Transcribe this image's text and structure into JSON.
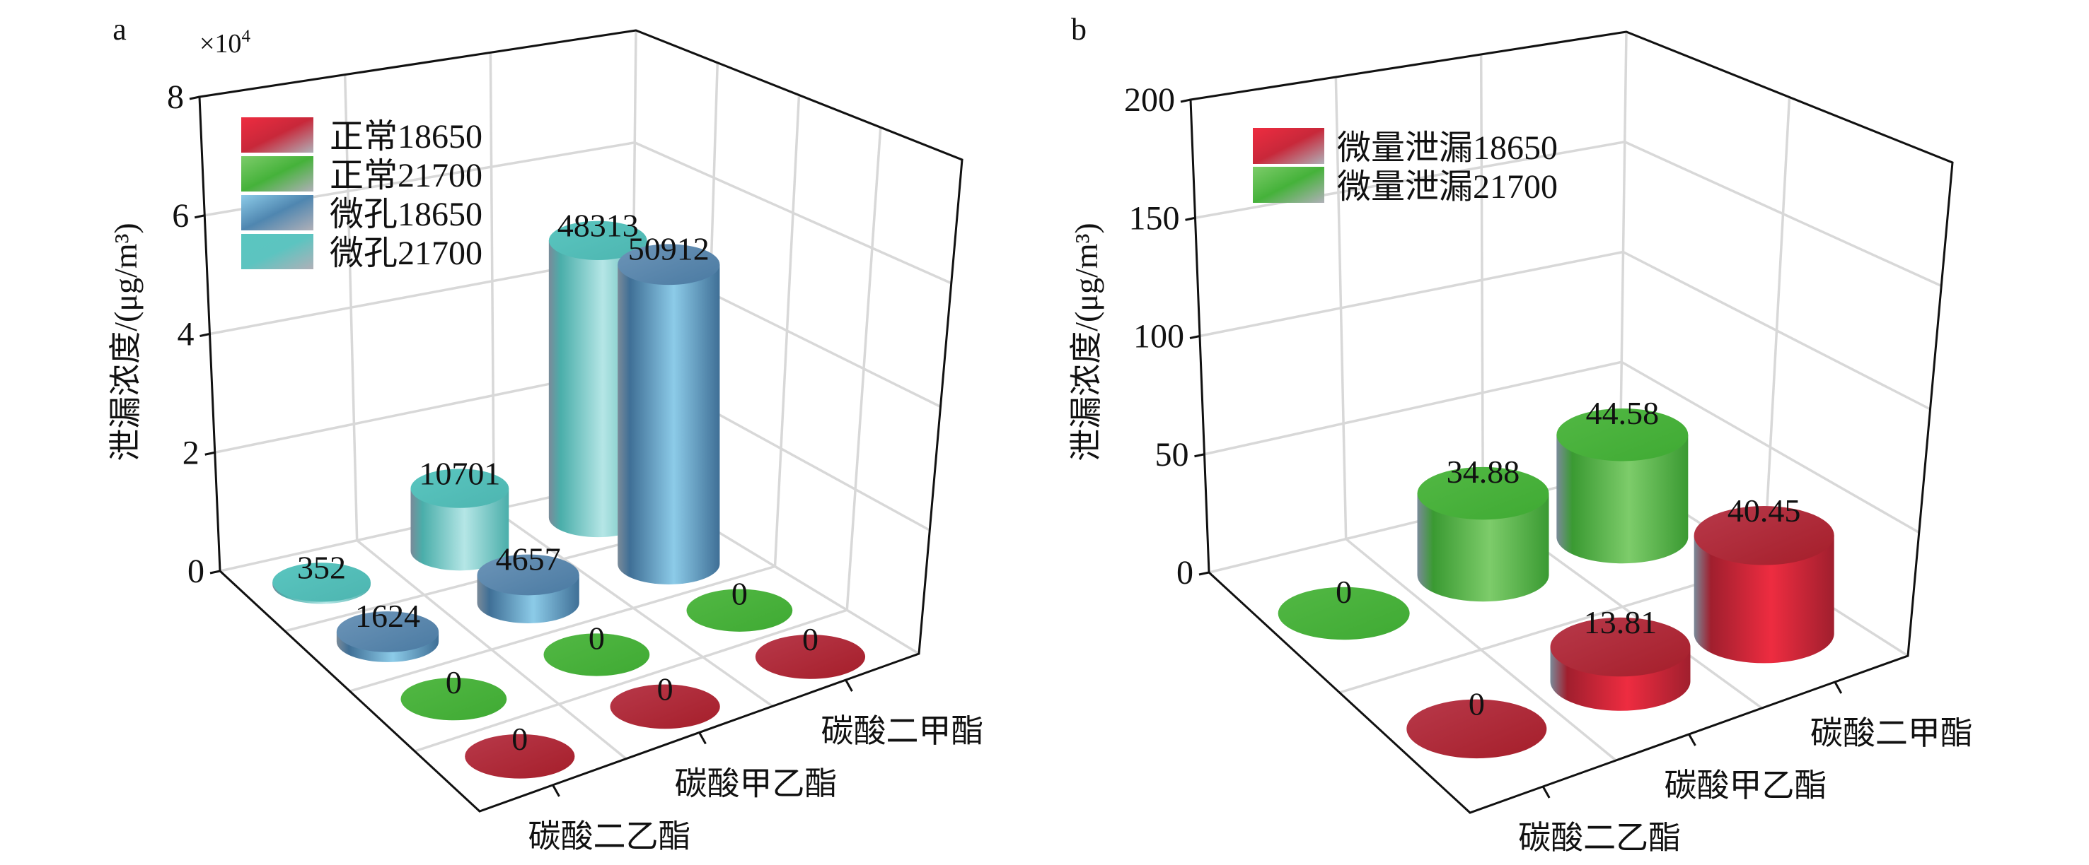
{
  "chart_data": [
    {
      "panel_label": "a",
      "type": "bar3d",
      "multiplier_label": "×10",
      "multiplier_exp": "4",
      "ylabel": "泄漏浓度/(μg/m³)",
      "ylim": [
        0,
        80000
      ],
      "yticks": [
        0,
        2,
        4,
        6,
        8
      ],
      "ytick_unit": 10000,
      "grid": true,
      "legend_position": "top-left",
      "categories": [
        "碳酸二乙酯",
        "碳酸甲乙酯",
        "碳酸二甲酯"
      ],
      "series": [
        {
          "name": "正常18650",
          "color": "#c8283a",
          "values": [
            0,
            0,
            0
          ]
        },
        {
          "name": "正常21700",
          "color": "#45b23a",
          "values": [
            0,
            0,
            0
          ]
        },
        {
          "name": "微孔18650",
          "color": "#4f86b0",
          "values": [
            1624,
            4657,
            50912
          ]
        },
        {
          "name": "微孔21700",
          "color": "#5cc4c0",
          "values": [
            352,
            10701,
            48313
          ]
        }
      ]
    },
    {
      "panel_label": "b",
      "type": "bar3d",
      "ylabel": "泄漏浓度/(μg/m³)",
      "ylim": [
        0,
        200
      ],
      "yticks": [
        0,
        50,
        100,
        150,
        200
      ],
      "ytick_unit": 1,
      "grid": true,
      "legend_position": "top-left",
      "categories": [
        "碳酸二乙酯",
        "碳酸甲乙酯",
        "碳酸二甲酯"
      ],
      "series": [
        {
          "name": "微量泄漏18650",
          "color": "#c8283a",
          "values": [
            0,
            13.81,
            40.45
          ]
        },
        {
          "name": "微量泄漏21700",
          "color": "#45b23a",
          "values": [
            0,
            34.88,
            44.58
          ]
        }
      ]
    }
  ]
}
